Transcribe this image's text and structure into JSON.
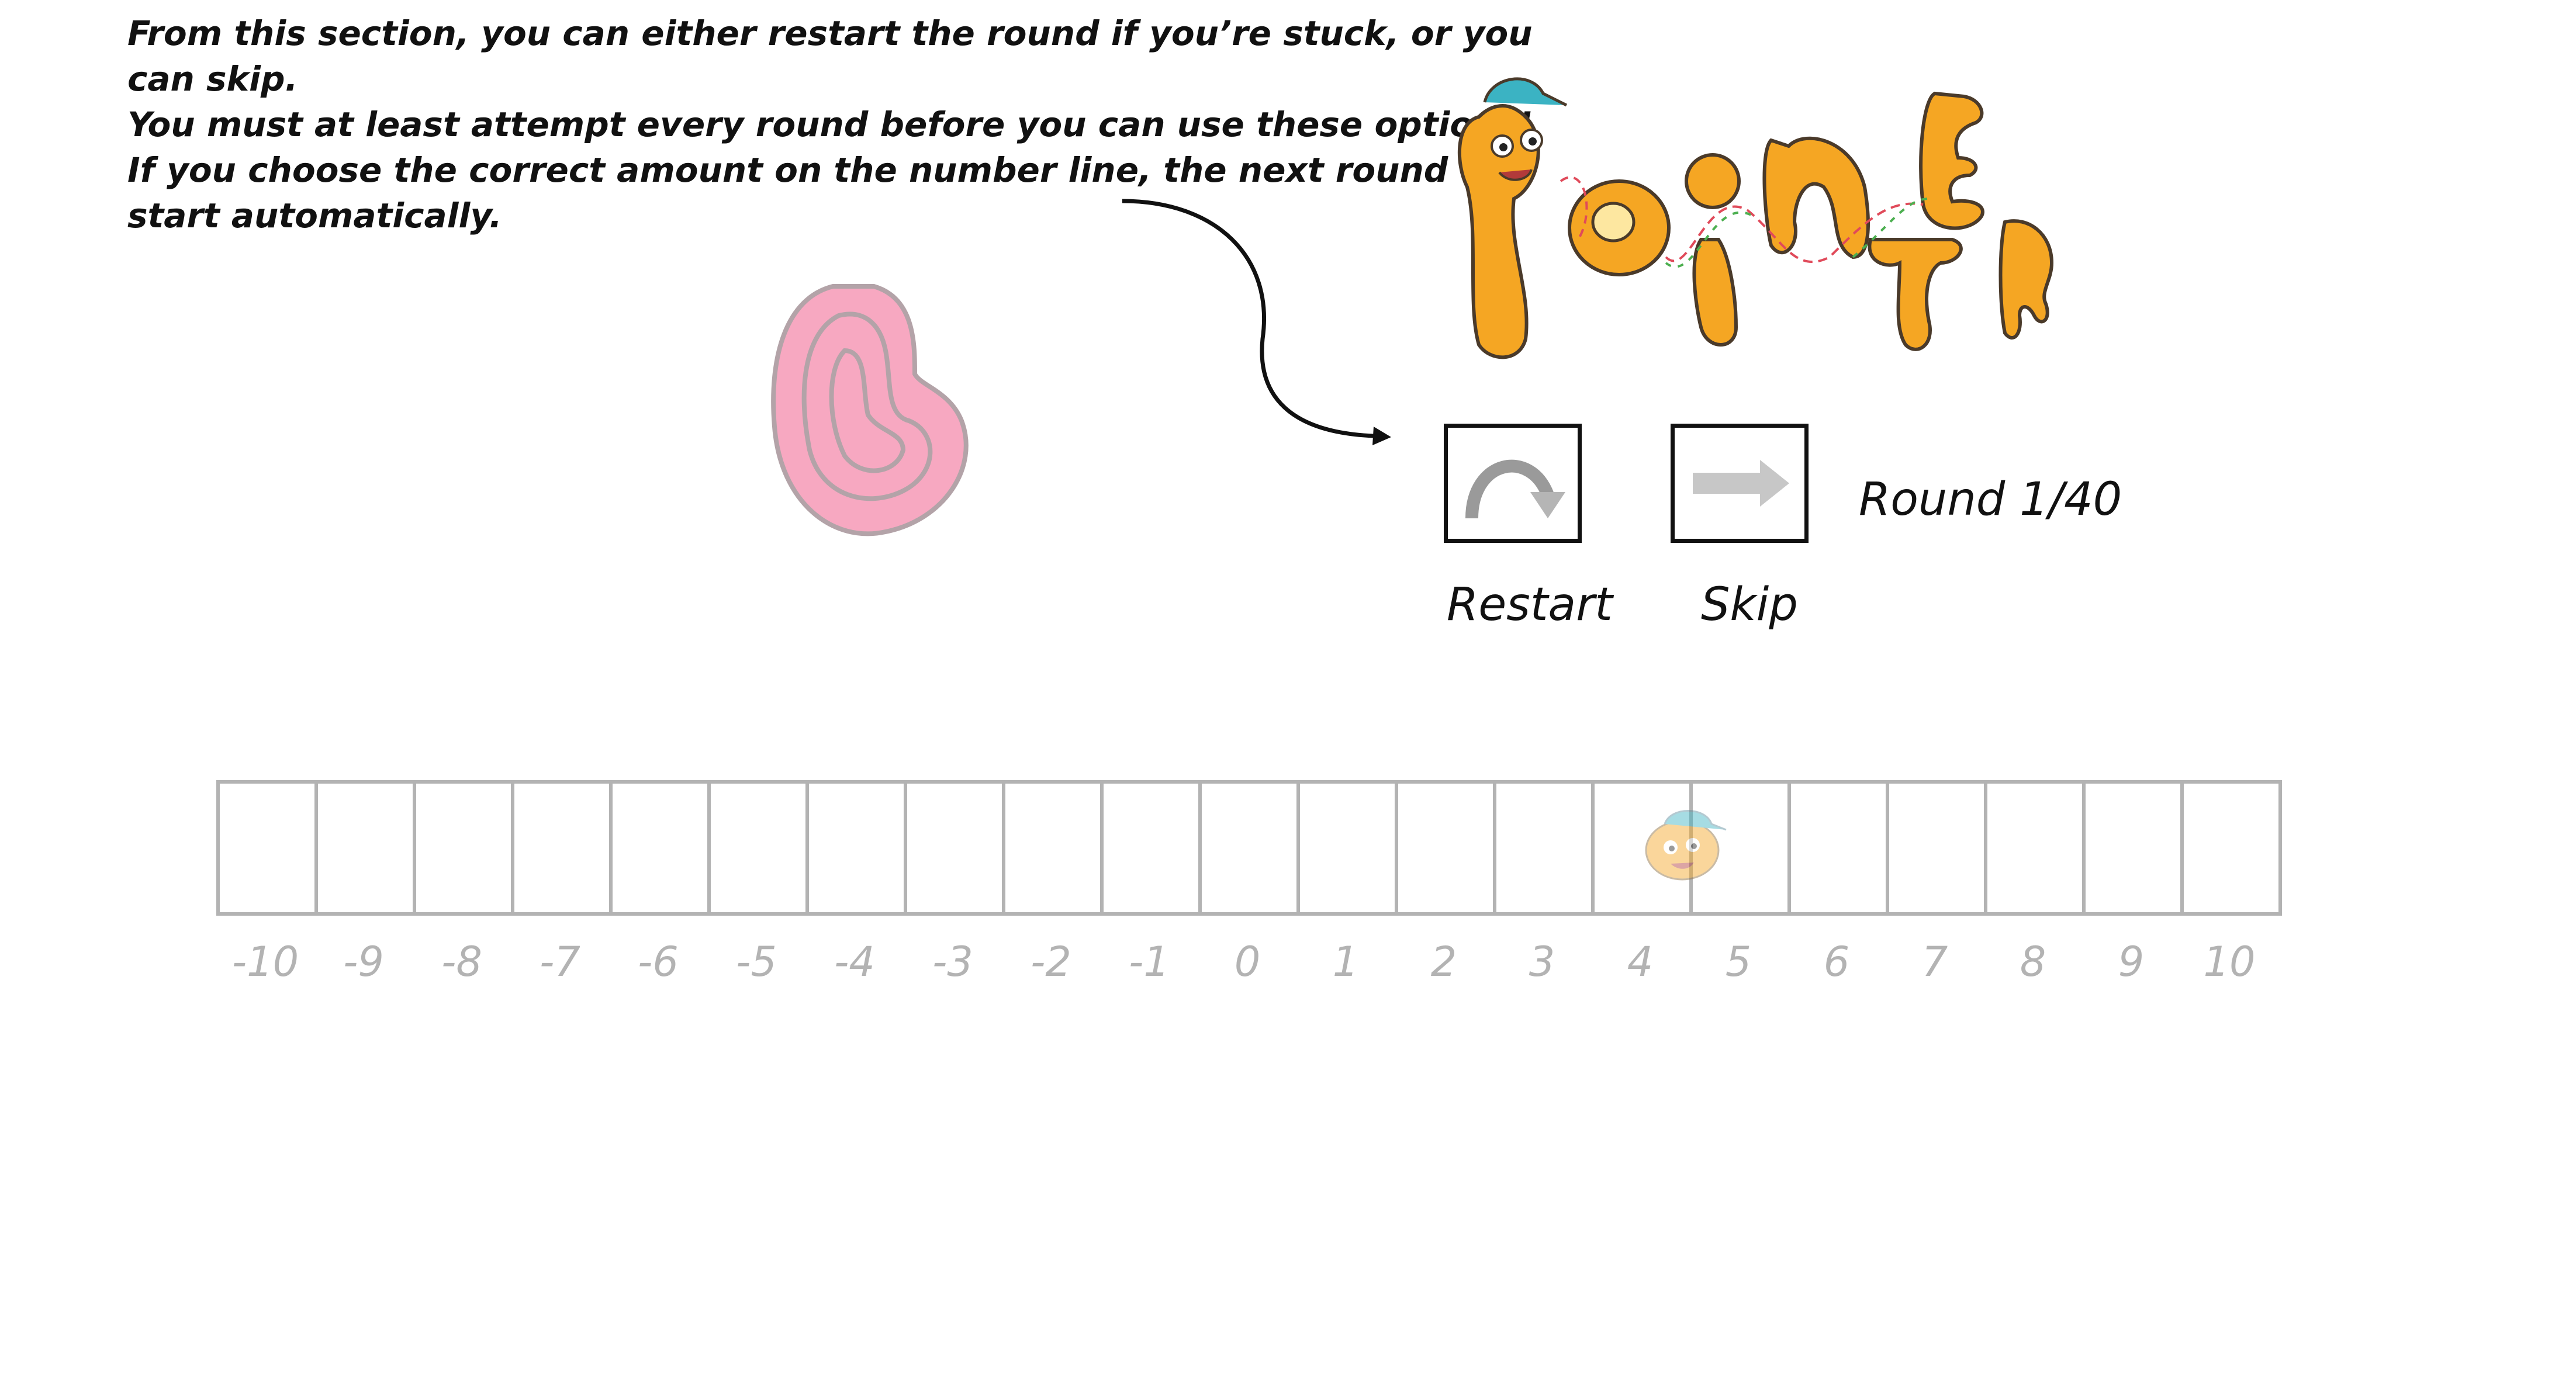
{
  "instructions": {
    "line1": "From this section, you can either restart the round if you’re stuck, or you can skip.",
    "line2": "You must at least attempt every round before you can use these options!",
    "line3": "If you choose the correct amount on the number line, the next round will start automatically."
  },
  "logo": {
    "text": "Pointer",
    "colors": {
      "body": "#f5a623",
      "outline": "#4a3a2a",
      "cap": "#3bb3c3",
      "accent": "#e04a5a"
    }
  },
  "controls": {
    "restart_label": "Restart",
    "skip_label": "Skip",
    "round": "Round 1/40"
  },
  "number_line": {
    "ticks": [
      "-10",
      "-9",
      "-8",
      "-7",
      "-6",
      "-5",
      "-4",
      "-3",
      "-2",
      "-1",
      "0",
      "1",
      "2",
      "3",
      "4",
      "5",
      "6",
      "7",
      "8",
      "9",
      "10"
    ],
    "pointer_at": "4",
    "colors": {
      "grid": "#b3b3b3",
      "labels": "#b3b3b3"
    }
  },
  "colors": {
    "blob_fill": "#f7a8c1",
    "blob_outline": "#b3a3a8",
    "text": "#111111"
  }
}
